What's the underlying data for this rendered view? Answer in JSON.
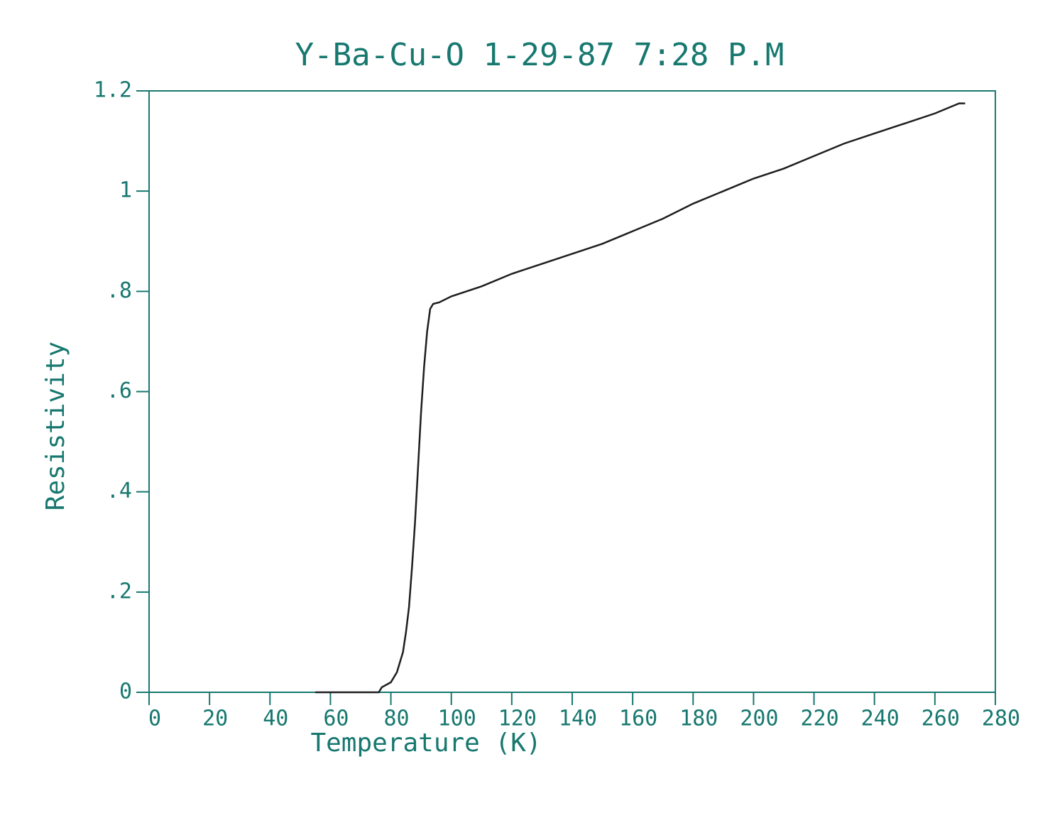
{
  "chart_data": {
    "type": "line",
    "title": "Y-Ba-Cu-O  1-29-87  7:28 P.M",
    "x_label": "Temperature (K)",
    "y_label": "Resistivity",
    "x": [
      55,
      70,
      76,
      77,
      80,
      82,
      84,
      85,
      86,
      87,
      88,
      89,
      90,
      91,
      92,
      93,
      94,
      96,
      100,
      110,
      120,
      130,
      140,
      150,
      160,
      170,
      180,
      190,
      200,
      210,
      220,
      230,
      240,
      250,
      260,
      268,
      270
    ],
    "values": [
      0,
      0,
      0,
      0.01,
      0.02,
      0.04,
      0.08,
      0.12,
      0.17,
      0.25,
      0.34,
      0.45,
      0.56,
      0.65,
      0.72,
      0.765,
      0.775,
      0.778,
      0.79,
      0.81,
      0.835,
      0.855,
      0.875,
      0.895,
      0.92,
      0.945,
      0.975,
      1.0,
      1.025,
      1.045,
      1.07,
      1.095,
      1.115,
      1.135,
      1.155,
      1.175,
      1.175
    ],
    "color": "#1e1e1e",
    "axis_color": "#17786f",
    "xlim": [
      0,
      280
    ],
    "xticks": [
      0,
      20,
      40,
      60,
      80,
      100,
      120,
      140,
      160,
      180,
      200,
      220,
      240,
      260,
      280
    ],
    "ylim": [
      0,
      1.2
    ],
    "yticks": [
      0,
      {
        "value": 0.2,
        "label": ".2"
      },
      {
        "value": 0.4,
        "label": ".4"
      },
      {
        "value": 0.6,
        "label": ".6"
      },
      {
        "value": 0.8,
        "label": ".8"
      },
      1,
      1.2
    ],
    "grid": false
  }
}
